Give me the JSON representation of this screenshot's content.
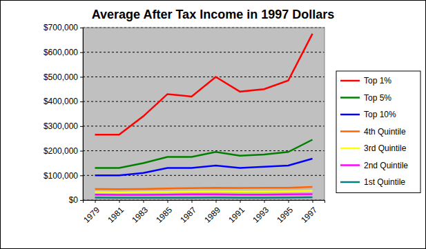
{
  "chart_data": {
    "type": "line",
    "title": "Average After Tax Income in 1997 Dollars",
    "x": [
      1979,
      1981,
      1983,
      1985,
      1987,
      1989,
      1991,
      1993,
      1995,
      1997
    ],
    "xlim": [
      1978,
      1998
    ],
    "xticks": [
      1979,
      1981,
      1983,
      1985,
      1987,
      1989,
      1991,
      1993,
      1995,
      1997
    ],
    "ylim": [
      0,
      700000
    ],
    "yticks": [
      {
        "value": 0,
        "label": "$0"
      },
      {
        "value": 100000,
        "label": "$100,000"
      },
      {
        "value": 200000,
        "label": "$200,000"
      },
      {
        "value": 300000,
        "label": "$300,000"
      },
      {
        "value": 400000,
        "label": "$400,000"
      },
      {
        "value": 500000,
        "label": "$500,000"
      },
      {
        "value": 600000,
        "label": "$600,000"
      },
      {
        "value": 700000,
        "label": "$700,000"
      }
    ],
    "grid": true,
    "legend": "right",
    "series": [
      {
        "name": "Top 1%",
        "color": "#ff0000",
        "values": [
          265000,
          265000,
          340000,
          430000,
          420000,
          500000,
          440000,
          450000,
          485000,
          675000
        ]
      },
      {
        "name": "Top 5%",
        "color": "#008000",
        "values": [
          130000,
          130000,
          150000,
          175000,
          175000,
          195000,
          180000,
          185000,
          195000,
          245000
        ]
      },
      {
        "name": "Top 10%",
        "color": "#0000ff",
        "values": [
          100000,
          100000,
          110000,
          130000,
          130000,
          140000,
          130000,
          135000,
          140000,
          168000
        ]
      },
      {
        "name": "4th Quintile",
        "color": "#ff6600",
        "values": [
          45000,
          44000,
          45000,
          47000,
          48000,
          50000,
          49000,
          50000,
          50000,
          53000
        ]
      },
      {
        "name": "3rd Quintile",
        "color": "#ffff00",
        "values": [
          32000,
          31000,
          32000,
          33000,
          34000,
          35000,
          34000,
          34000,
          35000,
          37000
        ]
      },
      {
        "name": "2nd Quintile",
        "color": "#ff00ff",
        "values": [
          22000,
          21000,
          21000,
          22000,
          23000,
          23000,
          22000,
          22000,
          23000,
          24000
        ]
      },
      {
        "name": "1st Quintile",
        "color": "#008080",
        "values": [
          10000,
          9000,
          9000,
          9000,
          9000,
          10000,
          9000,
          9000,
          10000,
          11000
        ]
      }
    ]
  }
}
